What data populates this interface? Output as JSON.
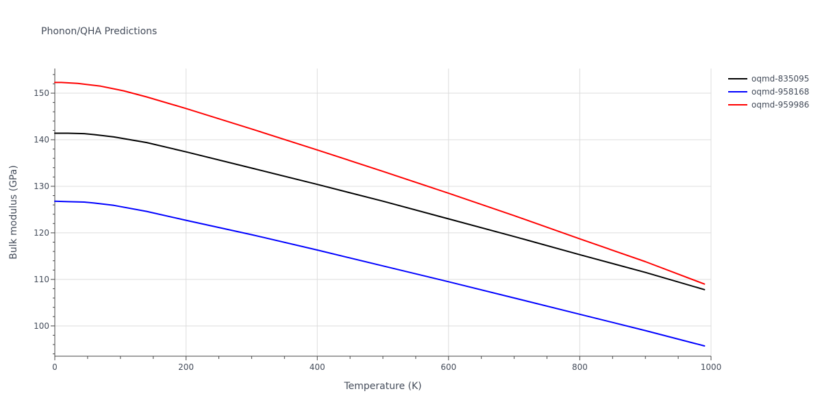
{
  "chart_data": {
    "type": "line",
    "title": "Phonon/QHA Predictions",
    "xlabel": "Temperature (K)",
    "ylabel": "Bulk modulus (GPa)",
    "xlim": [
      0,
      1000
    ],
    "ylim": [
      93.5,
      155.3
    ],
    "xticks": [
      0,
      200,
      400,
      600,
      800,
      1000
    ],
    "yticks": [
      100,
      110,
      120,
      130,
      140,
      150
    ],
    "grid": true,
    "legend_position": "top-right",
    "series": [
      {
        "name": "oqmd-835095",
        "color": "#000000",
        "x": [
          0,
          20,
          45,
          60,
          90,
          140,
          200,
          300,
          400,
          500,
          600,
          700,
          800,
          900,
          990
        ],
        "y": [
          141.4,
          141.4,
          141.3,
          141.1,
          140.6,
          139.4,
          137.4,
          133.9,
          130.4,
          126.8,
          123.0,
          119.2,
          115.3,
          111.5,
          107.8
        ]
      },
      {
        "name": "oqmd-958168",
        "color": "#0000ff",
        "x": [
          0,
          20,
          45,
          60,
          90,
          140,
          200,
          300,
          400,
          500,
          600,
          700,
          800,
          900,
          990
        ],
        "y": [
          126.8,
          126.7,
          126.6,
          126.4,
          125.9,
          124.6,
          122.7,
          119.6,
          116.3,
          112.9,
          109.5,
          106.0,
          102.5,
          99.0,
          95.7
        ]
      },
      {
        "name": "oqmd-959986",
        "color": "#ff0000",
        "x": [
          0,
          10,
          35,
          70,
          105,
          140,
          200,
          300,
          400,
          500,
          600,
          700,
          800,
          900,
          990
        ],
        "y": [
          152.3,
          152.3,
          152.1,
          151.5,
          150.5,
          149.2,
          146.7,
          142.3,
          137.8,
          133.2,
          128.5,
          123.7,
          118.7,
          113.8,
          109.0
        ]
      }
    ]
  }
}
